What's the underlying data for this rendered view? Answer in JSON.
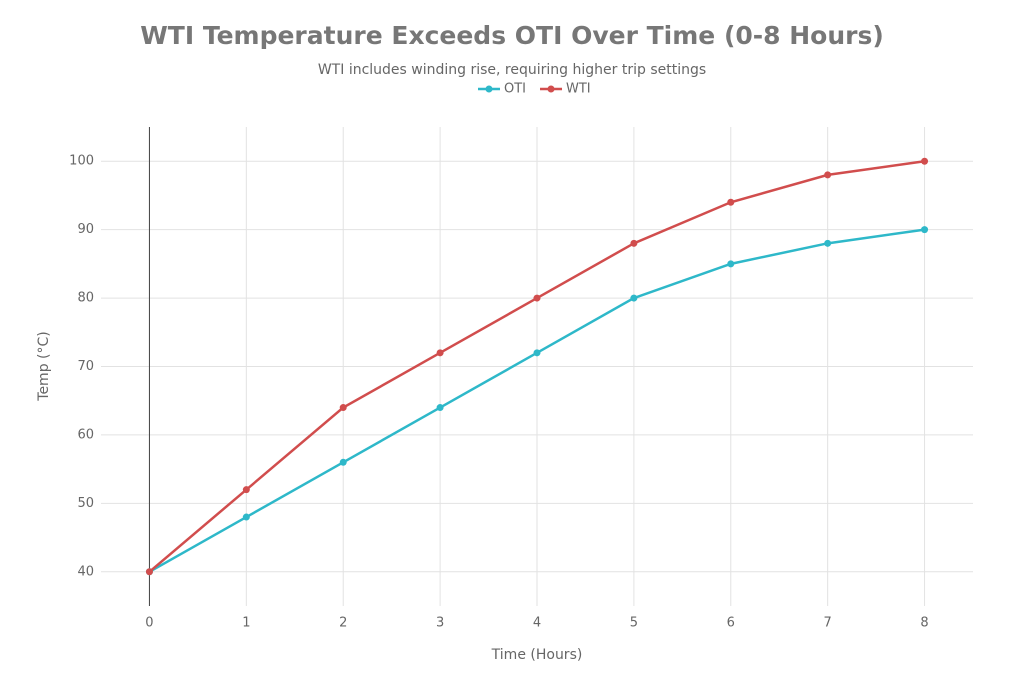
{
  "chart_data": {
    "type": "line",
    "title": "WTI Temperature Exceeds OTI Over Time (0-8 Hours)",
    "subtitle": "WTI includes winding rise, requiring higher trip settings",
    "x_label": "Time (Hours)",
    "y_label": "Temp (°C)",
    "x": [
      0,
      1,
      2,
      3,
      4,
      5,
      6,
      7,
      8
    ],
    "series": [
      {
        "name": "OTI",
        "color": "#2eb8c9",
        "values": [
          40,
          48,
          56,
          64,
          72,
          80,
          85,
          88,
          90
        ]
      },
      {
        "name": "WTI",
        "color": "#d14d4d",
        "values": [
          40,
          52,
          64,
          72,
          80,
          88,
          94,
          98,
          100
        ]
      }
    ],
    "xlim": [
      -0.5,
      8.5
    ],
    "xticks": [
      0,
      1,
      2,
      3,
      4,
      5,
      6,
      7,
      8
    ],
    "ylim": [
      35,
      105
    ],
    "yticks": [
      40,
      50,
      60,
      70,
      80,
      90,
      100
    ],
    "grid": true,
    "legend": "top"
  }
}
